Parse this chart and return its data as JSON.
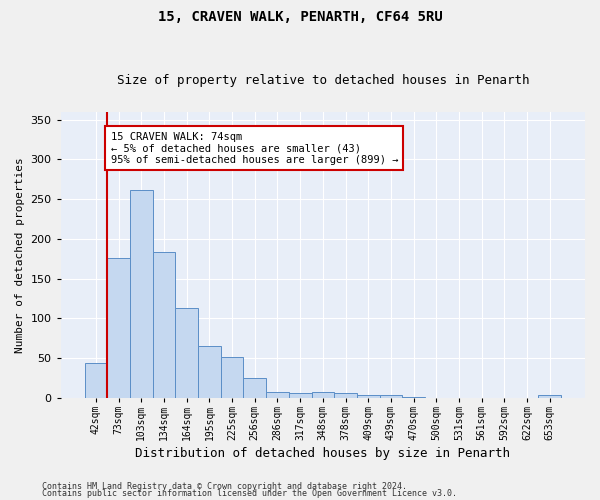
{
  "title1": "15, CRAVEN WALK, PENARTH, CF64 5RU",
  "title2": "Size of property relative to detached houses in Penarth",
  "xlabel": "Distribution of detached houses by size in Penarth",
  "ylabel": "Number of detached properties",
  "categories": [
    "42sqm",
    "73sqm",
    "103sqm",
    "134sqm",
    "164sqm",
    "195sqm",
    "225sqm",
    "256sqm",
    "286sqm",
    "317sqm",
    "348sqm",
    "378sqm",
    "409sqm",
    "439sqm",
    "470sqm",
    "500sqm",
    "531sqm",
    "561sqm",
    "592sqm",
    "622sqm",
    "653sqm"
  ],
  "values": [
    44,
    176,
    262,
    184,
    113,
    65,
    52,
    25,
    8,
    6,
    7,
    6,
    4,
    3,
    1,
    0,
    0,
    0,
    0,
    0,
    3
  ],
  "bar_color": "#c5d8f0",
  "bar_edge_color": "#5b8ec7",
  "annotation_line1": "15 CRAVEN WALK: 74sqm",
  "annotation_line2": "← 5% of detached houses are smaller (43)",
  "annotation_line3": "95% of semi-detached houses are larger (899) →",
  "annotation_box_color": "#ffffff",
  "annotation_box_edge": "#cc0000",
  "vline_color": "#cc0000",
  "background_color": "#e8eef8",
  "grid_color": "#ffffff",
  "fig_bg_color": "#f0f0f0",
  "ylim": [
    0,
    360
  ],
  "yticks": [
    0,
    50,
    100,
    150,
    200,
    250,
    300,
    350
  ],
  "footer1": "Contains HM Land Registry data © Crown copyright and database right 2024.",
  "footer2": "Contains public sector information licensed under the Open Government Licence v3.0.",
  "title1_fontsize": 10,
  "title2_fontsize": 9,
  "xlabel_fontsize": 9,
  "ylabel_fontsize": 8,
  "tick_fontsize": 7,
  "annotation_fontsize": 7.5,
  "footer_fontsize": 6
}
